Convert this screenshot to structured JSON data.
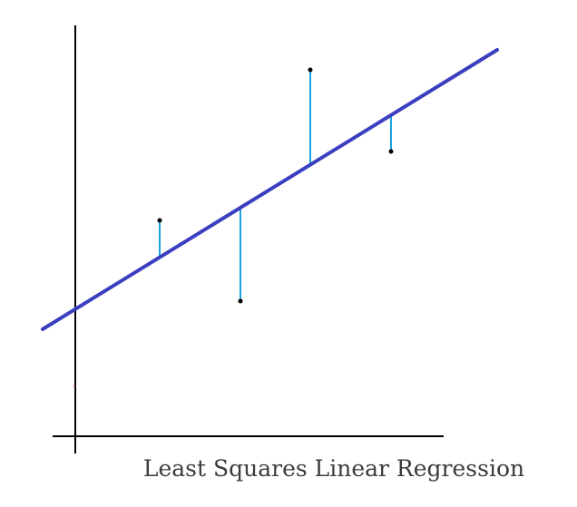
{
  "caption": "Least Squares Linear Regression",
  "colors": {
    "axis": "#000000",
    "regression_line": "#3b3fbf",
    "residual": "#1aa3e0",
    "point": "#000000",
    "caption": "#3c3c3c"
  },
  "diagram": {
    "elements": [
      "y-axis",
      "x-axis",
      "regression-line",
      "data-points",
      "residual-lines"
    ],
    "point_count": 4,
    "residual_count": 4
  }
}
